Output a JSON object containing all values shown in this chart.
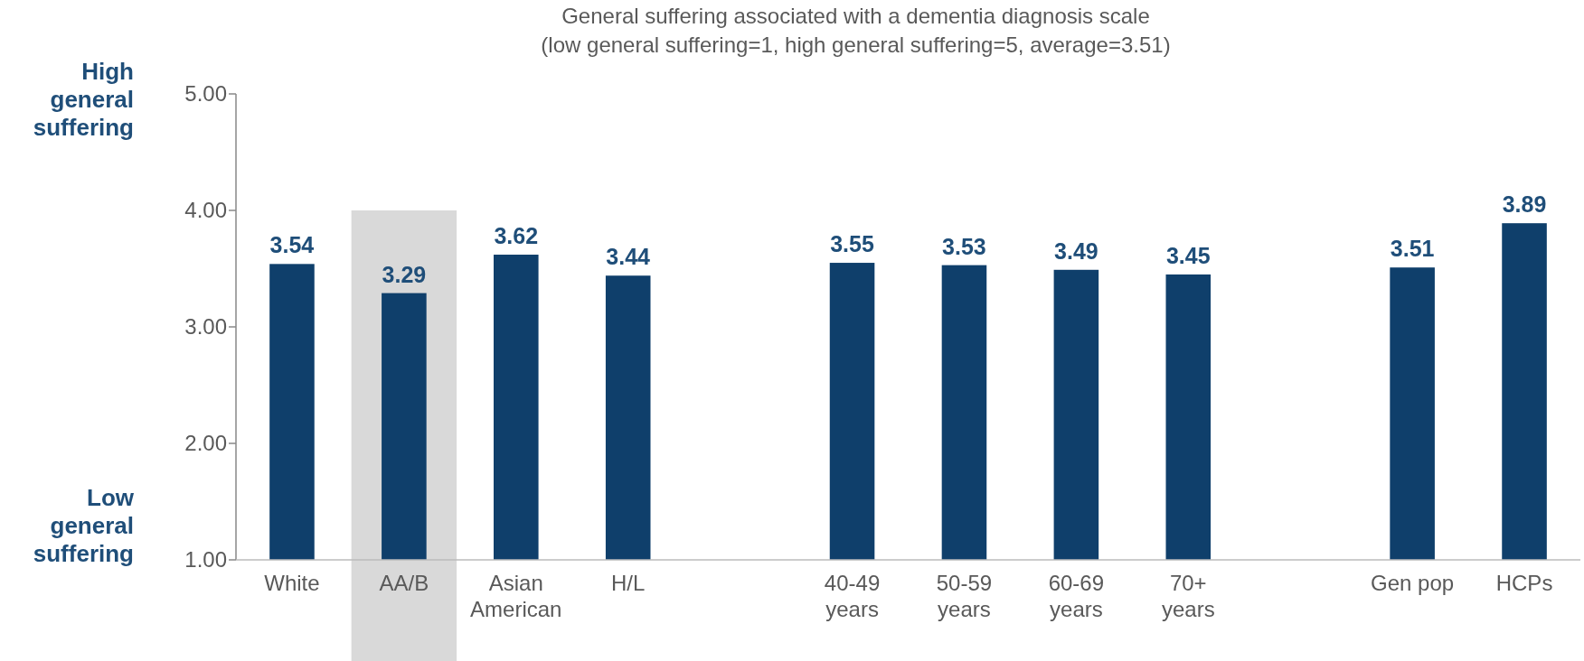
{
  "chart_data": {
    "type": "bar",
    "title": "General suffering associated with a dementia diagnosis scale",
    "subtitle": "(low general suffering=1, high general suffering=5, average=3.51)",
    "categories": [
      "White",
      "AA/B",
      "Asian American",
      "H/L",
      null,
      "40-49 years",
      "50-59 years",
      "60-69 years",
      "70+ years",
      null,
      "Gen pop",
      "HCPs"
    ],
    "values": [
      3.54,
      3.29,
      3.62,
      3.44,
      null,
      3.55,
      3.53,
      3.49,
      3.45,
      null,
      3.51,
      3.89
    ],
    "color": "#0f3f6b",
    "data_labels": true,
    "ylim": [
      1,
      5
    ],
    "yticks": [
      {
        "value": 1,
        "label": "1.00"
      },
      {
        "value": 2,
        "label": "2.00"
      },
      {
        "value": 3,
        "label": "3.00"
      },
      {
        "value": 4,
        "label": "4.00"
      },
      {
        "value": 5,
        "label": "5.00"
      }
    ],
    "grid": false,
    "bands": [
      {
        "axis": "x",
        "from": "AA/B",
        "to": "AA/B",
        "color": "#d9d9d9"
      }
    ],
    "annotations": [
      "High general suffering",
      "Low general suffering"
    ]
  }
}
